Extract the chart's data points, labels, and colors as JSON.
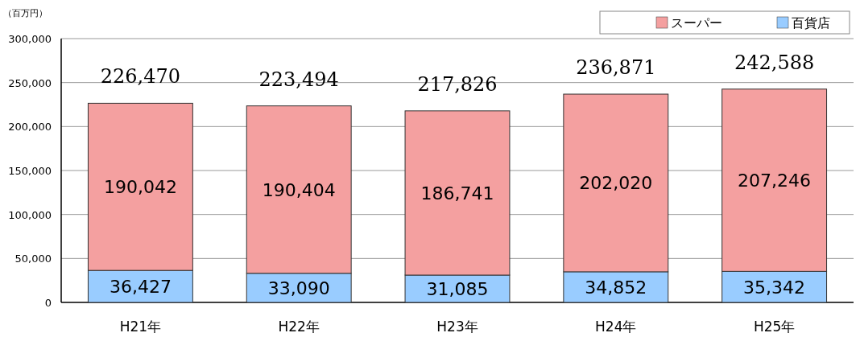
{
  "chart_data": {
    "type": "bar",
    "stacked": true,
    "ylabel": "（百万円）",
    "categories": [
      "H21年",
      "H22年",
      "H23年",
      "H24年",
      "H25年"
    ],
    "series": [
      {
        "name": "百貨店",
        "color": "#99ccff",
        "values": [
          36427,
          33090,
          31085,
          34852,
          35342
        ],
        "value_labels": [
          "36,427",
          "33,090",
          "31,085",
          "34,852",
          "35,342"
        ]
      },
      {
        "name": "スーパー",
        "color": "#f4a0a0",
        "values": [
          190042,
          190404,
          186741,
          202020,
          207246
        ],
        "value_labels": [
          "190,042",
          "190,404",
          "186,741",
          "202,020",
          "207,246"
        ]
      }
    ],
    "totals": [
      "226,470",
      "223,494",
      "217,826",
      "236,871",
      "242,588"
    ],
    "ylim": [
      0,
      300000
    ],
    "yticks": [
      0,
      {
        "value": 50000,
        "label": "50,000"
      },
      {
        "value": 100000,
        "label": "100,000"
      },
      {
        "value": 150000,
        "label": "150,000"
      },
      {
        "value": 200000,
        "label": "200,000"
      },
      {
        "value": 250000,
        "label": "250,000"
      },
      {
        "value": 300000,
        "label": "300,000"
      }
    ],
    "grid": "y",
    "legend": "top right"
  }
}
